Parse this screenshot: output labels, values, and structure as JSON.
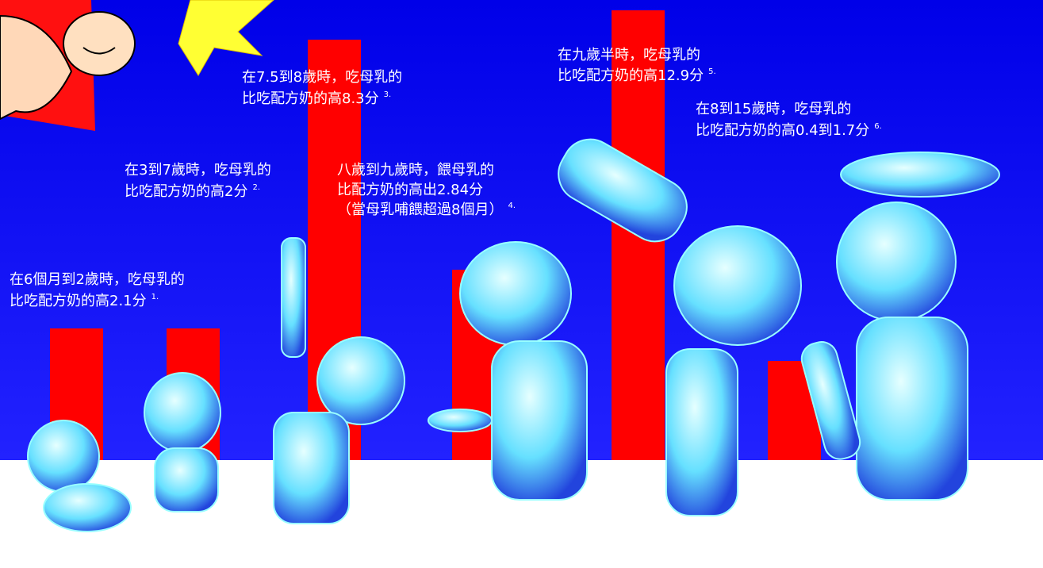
{
  "annotations": [
    {
      "lines": [
        "在6個月到2歲時，吃母乳的",
        "比吃配方奶的高2.1分"
      ],
      "note": "1."
    },
    {
      "lines": [
        "在3到7歲時，吃母乳的",
        "比吃配方奶的高2分"
      ],
      "note": "2."
    },
    {
      "lines": [
        "在7.5到8歲時，吃母乳的",
        "比吃配方奶的高8.3分"
      ],
      "note": "3."
    },
    {
      "lines": [
        "八歲到九歲時，餵母乳的",
        "比配方奶的高出2.84分",
        "（當母乳哺餵超過8個月）"
      ],
      "note": "4."
    },
    {
      "lines": [
        "在九歲半時，吃母乳的",
        "比吃配方奶的高12.9分"
      ],
      "note": "5."
    },
    {
      "lines": [
        "在8到15歲時，吃母乳的",
        "比吃配方奶的高0.4到1.7分"
      ],
      "note": "6."
    }
  ]
}
